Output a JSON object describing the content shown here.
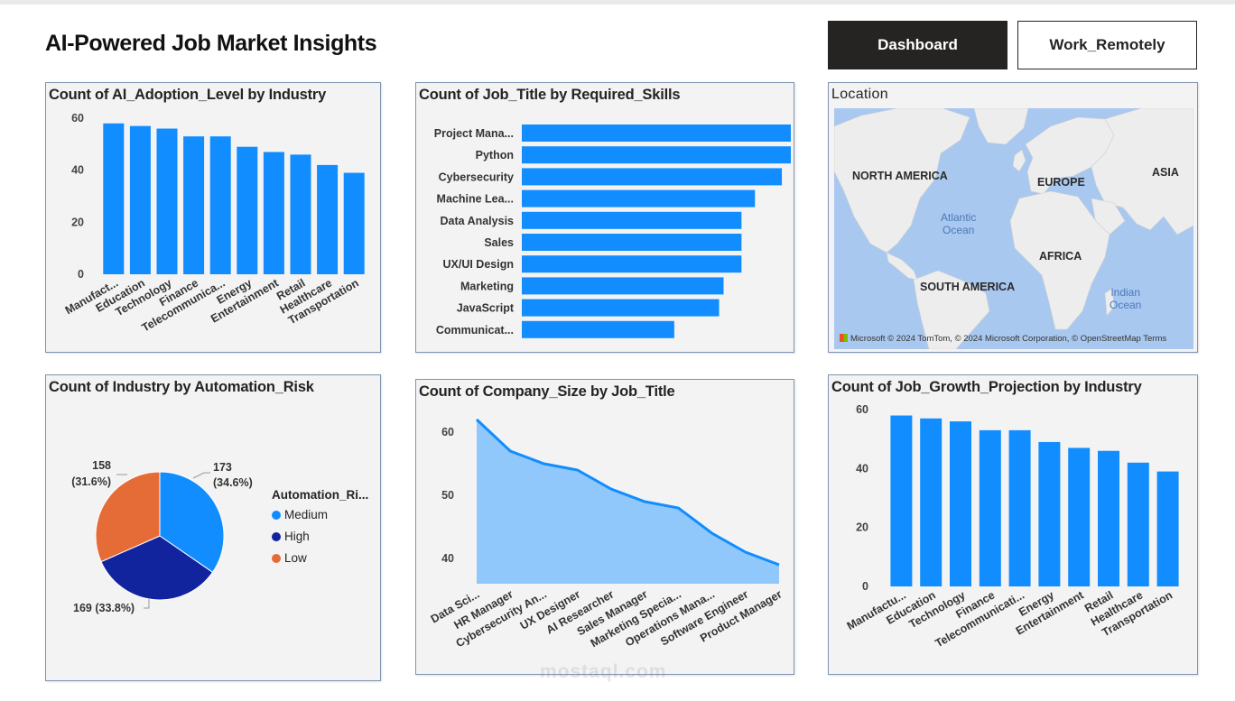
{
  "header": {
    "title": "AI-Powered Job Market Insights",
    "nav": [
      {
        "label": "Dashboard",
        "active": true
      },
      {
        "label": "Work_Remotely",
        "active": false
      }
    ]
  },
  "charts": {
    "adoption": {
      "title": "Count of AI_Adoption_Level by Industry"
    },
    "skills": {
      "title": "Count of Job_Title by Required_Skills"
    },
    "location": {
      "title": "Location",
      "labels": {
        "north_america": "NORTH AMERICA",
        "europe": "EUROPE",
        "asia": "ASIA",
        "africa": "AFRICA",
        "south_america": "SOUTH AMERICA",
        "atlantic": "Atlantic\nOcean",
        "indian": "Indian\nOcean"
      },
      "attribution": "Microsoft   © 2024 TomTom, © 2024 Microsoft Corporation, © OpenStreetMap  Terms"
    },
    "automation": {
      "title": "Count of Industry by Automation_Risk",
      "legend_title": "Automation_Ri..."
    },
    "company_size": {
      "title": "Count of Company_Size by Job_Title"
    },
    "growth": {
      "title": "Count of Job_Growth_Projection by Industry"
    }
  },
  "colors": {
    "bar": "#118dff",
    "area_fill": "#91c8fb",
    "medium": "#118dff",
    "high": "#12239e",
    "low": "#e66c37"
  },
  "watermark": "mostaql.com",
  "chart_data": [
    {
      "id": "adoption",
      "type": "bar",
      "title": "Count of AI_Adoption_Level by Industry",
      "categories": [
        "Manufact...",
        "Education",
        "Technology",
        "Finance",
        "Telecommunica...",
        "Energy",
        "Entertainment",
        "Retail",
        "Healthcare",
        "Transportation"
      ],
      "values": [
        58,
        57,
        56,
        53,
        53,
        49,
        47,
        46,
        42,
        39
      ],
      "yticks": [
        "0",
        "20",
        "40",
        "60"
      ],
      "ylim": [
        0,
        60
      ]
    },
    {
      "id": "skills",
      "type": "bar",
      "orientation": "horizontal",
      "title": "Count of Job_Title by Required_Skills",
      "categories": [
        "Project Mana...",
        "Python",
        "Cybersecurity",
        "Machine Lea...",
        "Data Analysis",
        "Sales",
        "UX/UI Design",
        "Marketing",
        "JavaScript",
        "Communicat..."
      ],
      "values": [
        60,
        60,
        58,
        52,
        49,
        49,
        49,
        45,
        44,
        34
      ],
      "xlim": [
        0,
        60
      ]
    },
    {
      "id": "automation",
      "type": "pie",
      "title": "Count of Industry by Automation_Risk",
      "slices": [
        {
          "label": "Medium",
          "value": 173,
          "text": "173",
          "pct": "(34.6%)"
        },
        {
          "label": "High",
          "value": 169,
          "text": "169 (33.8%)",
          "pct": ""
        },
        {
          "label": "Low",
          "value": 158,
          "text": "158",
          "pct": "(31.6%)"
        }
      ]
    },
    {
      "id": "company_size",
      "type": "area",
      "title": "Count of Company_Size by Job_Title",
      "categories": [
        "Data Sci...",
        "HR Manager",
        "Cybersecurity An...",
        "UX Designer",
        "AI Researcher",
        "Sales Manager",
        "Marketing Specia...",
        "Operations Mana...",
        "Software Engineer",
        "Product Manager"
      ],
      "values": [
        62,
        57,
        55,
        54,
        51,
        49,
        48,
        44,
        41,
        39
      ],
      "yticks": [
        "40",
        "50",
        "60"
      ],
      "ylim": [
        36,
        64
      ]
    },
    {
      "id": "growth",
      "type": "bar",
      "title": "Count of Job_Growth_Projection by Industry",
      "categories": [
        "Manufactu...",
        "Education",
        "Technology",
        "Finance",
        "Telecommunicati...",
        "Energy",
        "Entertainment",
        "Retail",
        "Healthcare",
        "Transportation"
      ],
      "values": [
        58,
        57,
        56,
        53,
        53,
        49,
        47,
        46,
        42,
        39
      ],
      "yticks": [
        "0",
        "20",
        "40",
        "60"
      ],
      "ylim": [
        0,
        60
      ]
    }
  ]
}
